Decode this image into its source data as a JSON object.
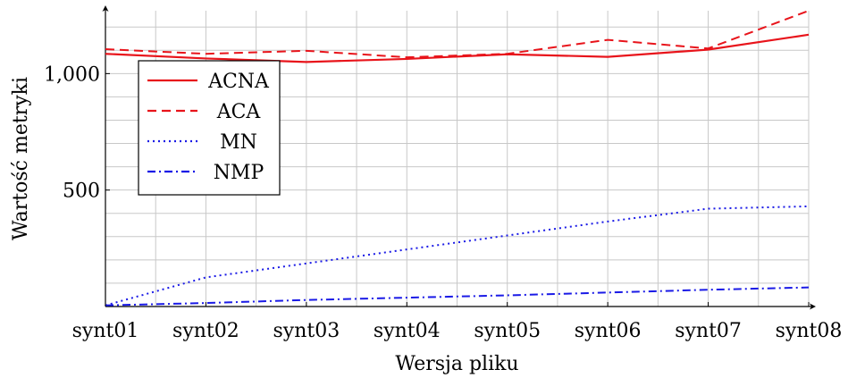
{
  "chart_data": {
    "type": "line",
    "xlabel": "Wersja pliku",
    "ylabel": "Wartość metryki",
    "categories": [
      "synt01",
      "synt02",
      "synt03",
      "synt04",
      "synt05",
      "synt06",
      "synt07",
      "synt08"
    ],
    "ylim": [
      0,
      1270
    ],
    "yticks": [
      500,
      1000
    ],
    "ytick_labels": [
      "500",
      "1,000"
    ],
    "grid": true,
    "legend": "top-left",
    "series": [
      {
        "name": "ACNA",
        "color": "#e8141b",
        "style": "solid",
        "values": [
          1085,
          1065,
          1050,
          1063,
          1083,
          1072,
          1103,
          1167
        ]
      },
      {
        "name": "ACA",
        "color": "#e8141b",
        "style": "dashed",
        "values": [
          1105,
          1085,
          1098,
          1070,
          1085,
          1145,
          1108,
          1270
        ]
      },
      {
        "name": "MN",
        "color": "#1a1ae6",
        "style": "dotted",
        "values": [
          5,
          125,
          185,
          245,
          305,
          365,
          420,
          430
        ]
      },
      {
        "name": "NMP",
        "color": "#1a1ae6",
        "style": "dashdot",
        "values": [
          5,
          15,
          28,
          38,
          48,
          60,
          72,
          82
        ]
      }
    ]
  }
}
